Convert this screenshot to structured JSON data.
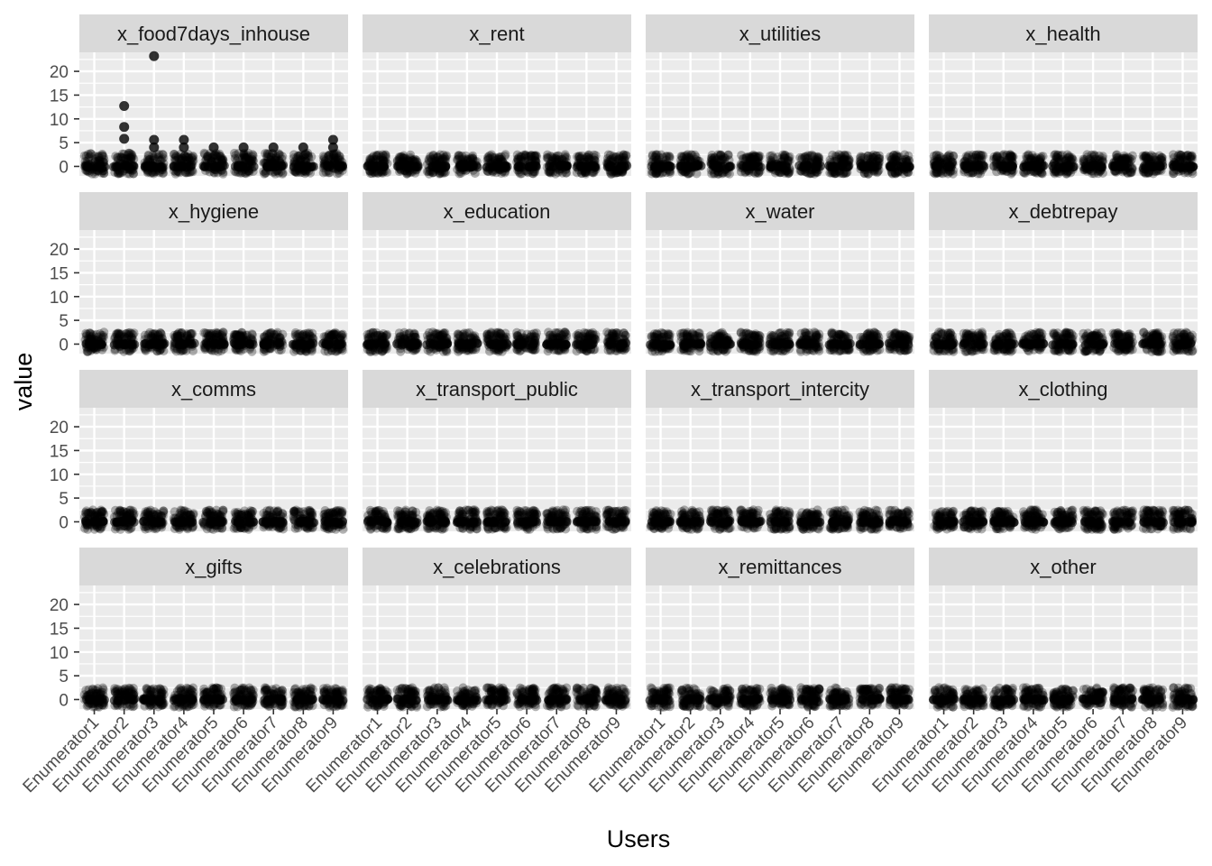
{
  "chart_data": {
    "type": "scatter",
    "facet_layout": {
      "rows": 4,
      "cols": 4
    },
    "xlabel": "Users",
    "ylabel": "value",
    "categories": [
      "Enumerator1",
      "Enumerator2",
      "Enumerator3",
      "Enumerator4",
      "Enumerator5",
      "Enumerator6",
      "Enumerator7",
      "Enumerator8",
      "Enumerator9"
    ],
    "ylim": [
      -2,
      24
    ],
    "y_ticks": [
      0,
      5,
      10,
      15,
      20
    ],
    "grid": true,
    "colors": {
      "panel": "#ebebeb",
      "strip": "#d9d9d9",
      "grid": "#ffffff",
      "point": "#000000",
      "axis_text": "#4d4d4d"
    },
    "point_alpha": 0.3,
    "facets": [
      {
        "title": "x_food7days_inhouse",
        "max": [
          4.5,
          12.5,
          23,
          5.5,
          4,
          4,
          4,
          4,
          5.5
        ],
        "outliers": [
          {
            "category": "Enumerator2",
            "value": 12.7
          },
          {
            "category": "Enumerator2",
            "value": 8.3
          },
          {
            "category": "Enumerator2",
            "value": 5.8
          },
          {
            "category": "Enumerator3",
            "value": 23.2
          },
          {
            "category": "Enumerator3",
            "value": 5.6
          },
          {
            "category": "Enumerator3",
            "value": 4.0
          },
          {
            "category": "Enumerator4",
            "value": 5.6
          },
          {
            "category": "Enumerator4",
            "value": 4.0
          },
          {
            "category": "Enumerator5",
            "value": 4.0
          },
          {
            "category": "Enumerator6",
            "value": 4.0
          },
          {
            "category": "Enumerator7",
            "value": 4.0
          },
          {
            "category": "Enumerator8",
            "value": 4.0
          },
          {
            "category": "Enumerator9",
            "value": 5.6
          },
          {
            "category": "Enumerator9",
            "value": 4.0
          }
        ]
      },
      {
        "title": "x_rent",
        "max": [
          2.5,
          2.5,
          2.5,
          2.5,
          2.5,
          2.5,
          2.5,
          2.5,
          2.5
        ],
        "outliers": []
      },
      {
        "title": "x_utilities",
        "max": [
          2.5,
          2.5,
          2.5,
          2.5,
          2.5,
          2.5,
          2.5,
          2.5,
          2.5
        ],
        "outliers": []
      },
      {
        "title": "x_health",
        "max": [
          2.5,
          2.5,
          2.5,
          2.5,
          2.5,
          2.5,
          2.5,
          2.5,
          2.5
        ],
        "outliers": []
      },
      {
        "title": "x_hygiene",
        "max": [
          2.5,
          2.5,
          2.5,
          2.5,
          2.5,
          2.5,
          2.5,
          2.5,
          2.5
        ],
        "outliers": []
      },
      {
        "title": "x_education",
        "max": [
          2.5,
          2.5,
          2.5,
          2.5,
          2.5,
          2.5,
          2.5,
          2.5,
          2.5
        ],
        "outliers": []
      },
      {
        "title": "x_water",
        "max": [
          2.5,
          2.5,
          2.5,
          2.5,
          2.5,
          2.5,
          2.5,
          2.5,
          2.5
        ],
        "outliers": []
      },
      {
        "title": "x_debtrepay",
        "max": [
          2.5,
          2.5,
          2.5,
          2.5,
          2.5,
          2.5,
          2.5,
          2.5,
          2.5
        ],
        "outliers": []
      },
      {
        "title": "x_comms",
        "max": [
          2.5,
          2.5,
          2.5,
          2.5,
          2.5,
          2.5,
          2.5,
          2.5,
          2.5
        ],
        "outliers": []
      },
      {
        "title": "x_transport_public",
        "max": [
          2.5,
          2.5,
          2.5,
          2.5,
          2.5,
          2.5,
          2.5,
          2.5,
          2.5
        ],
        "outliers": []
      },
      {
        "title": "x_transport_intercity",
        "max": [
          2.5,
          2.5,
          2.5,
          2.5,
          2.5,
          2.5,
          2.5,
          2.5,
          2.5
        ],
        "outliers": []
      },
      {
        "title": "x_clothing",
        "max": [
          2.5,
          2.5,
          2.5,
          2.5,
          2.5,
          2.5,
          2.5,
          2.5,
          2.5
        ],
        "outliers": []
      },
      {
        "title": "x_gifts",
        "max": [
          2.5,
          2.5,
          2.5,
          2.5,
          2.5,
          2.5,
          2.5,
          2.5,
          2.5
        ],
        "outliers": []
      },
      {
        "title": "x_celebrations",
        "max": [
          2.5,
          2.5,
          2.5,
          2.5,
          2.5,
          2.5,
          2.5,
          2.5,
          2.5
        ],
        "outliers": []
      },
      {
        "title": "x_remittances",
        "max": [
          2.5,
          2.5,
          2.5,
          2.5,
          2.5,
          2.5,
          2.5,
          2.5,
          2.5
        ],
        "outliers": []
      },
      {
        "title": "x_other",
        "max": [
          2.5,
          2.5,
          2.5,
          2.5,
          2.5,
          2.5,
          2.5,
          2.5,
          2.5
        ],
        "outliers": []
      }
    ]
  }
}
